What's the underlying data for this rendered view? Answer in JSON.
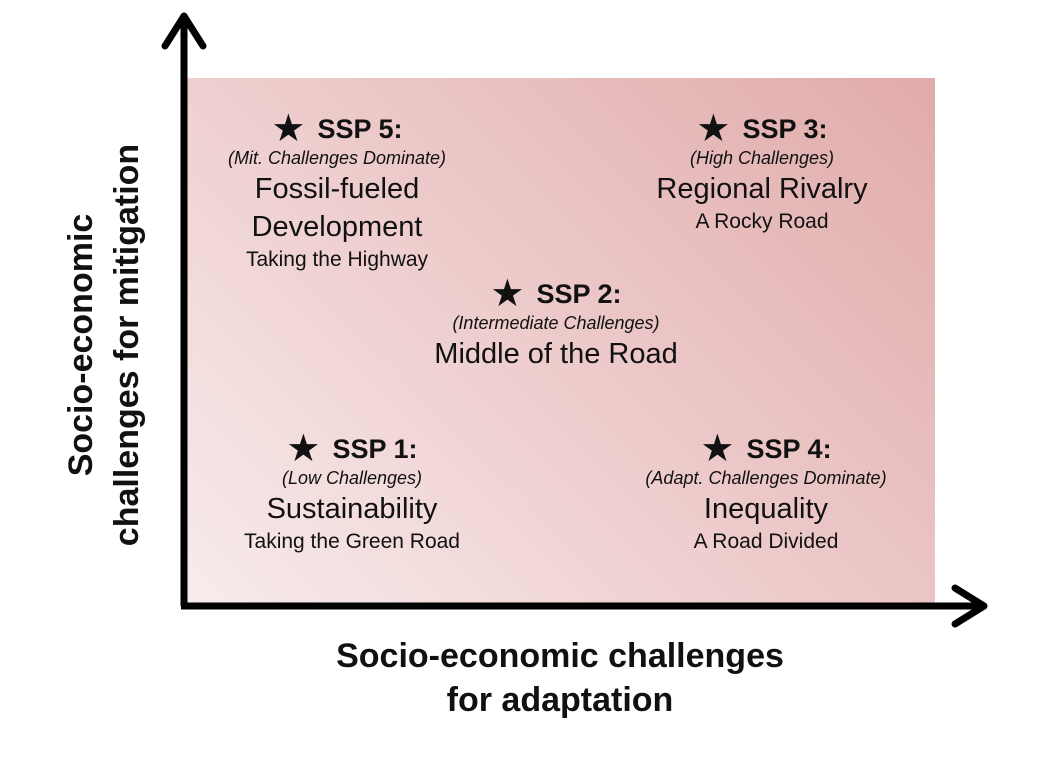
{
  "axes": {
    "x_label_line1": "Socio-economic challenges",
    "x_label_line2": "for adaptation",
    "y_label_line1": "Socio-economic",
    "y_label_line2": "challenges for mitigation"
  },
  "scenarios": [
    {
      "id": "ssp5",
      "heading": "SSP 5:",
      "subtitle": "(Mit. Challenges Dominate)",
      "name_line1": "Fossil-fueled",
      "name_line2": "Development",
      "tagline": "Taking the Highway"
    },
    {
      "id": "ssp3",
      "heading": "SSP 3:",
      "subtitle": "(High Challenges)",
      "name_line1": "Regional Rivalry",
      "tagline": "A Rocky Road"
    },
    {
      "id": "ssp2",
      "heading": "SSP 2:",
      "subtitle": "(Intermediate Challenges)",
      "name_line1": "Middle of the Road"
    },
    {
      "id": "ssp1",
      "heading": "SSP 1:",
      "subtitle": "(Low Challenges)",
      "name_line1": "Sustainability",
      "tagline": "Taking the Green Road"
    },
    {
      "id": "ssp4",
      "heading": "SSP 4:",
      "subtitle": "(Adapt. Challenges Dominate)",
      "name_line1": "Inequality",
      "tagline": "A Road Divided"
    }
  ],
  "colors": {
    "quadrant_light": "#f8ecec",
    "quadrant_dark": "#e0abaa",
    "axis": "#000000"
  }
}
